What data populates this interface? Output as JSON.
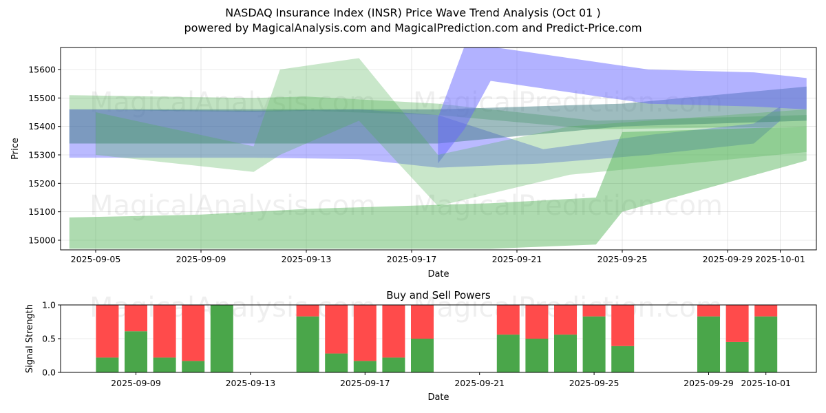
{
  "title": "NASDAQ Insurance Index (INSR) Price Wave Trend Analysis (Oct 01 )",
  "subtitle": "powered by MagicalAnalysis.com and MagicalPrediction.com and Predict-Price.com",
  "watermarks": [
    "MagicalAnalysis.com",
    "MagicalPrediction.com"
  ],
  "colors": {
    "buy": "#4aa64a",
    "sell": "#ff4b4b",
    "wave_blue": "#6666ff",
    "wave_green": "#4caf50"
  },
  "chart_data": [
    {
      "type": "area",
      "title": "",
      "xlabel": "Date",
      "ylabel": "Price",
      "ylim": [
        14970,
        15680
      ],
      "xlim": [
        "2025-09-04",
        "2025-10-02"
      ],
      "grid": true,
      "yticks": [
        15000,
        15100,
        15200,
        15300,
        15400,
        15500,
        15600
      ],
      "xticks": [
        "2025-09-05",
        "2025-09-09",
        "2025-09-13",
        "2025-09-17",
        "2025-09-21",
        "2025-09-25",
        "2025-09-29",
        "2025-10-01"
      ],
      "bands": [
        {
          "name": "green-high",
          "color": "green",
          "opacity": 0.35,
          "x": [
            "2025-09-04",
            "2025-09-11",
            "2025-09-13",
            "2025-09-18",
            "2025-09-24",
            "2025-10-02"
          ],
          "lower": [
            15460,
            15450,
            15455,
            15440,
            15390,
            15400
          ],
          "upper": [
            15510,
            15500,
            15505,
            15480,
            15420,
            15440
          ]
        },
        {
          "name": "blue-main",
          "color": "blue",
          "opacity": 0.45,
          "x": [
            "2025-09-04",
            "2025-09-11",
            "2025-09-15",
            "2025-09-18",
            "2025-09-22",
            "2025-09-26",
            "2025-09-30",
            "2025-10-01"
          ],
          "lower": [
            15290,
            15290,
            15285,
            15255,
            15270,
            15300,
            15340,
            15420
          ],
          "upper": [
            15460,
            15455,
            15460,
            15440,
            15320,
            15370,
            15410,
            15470
          ]
        },
        {
          "name": "blue-teal",
          "color": "teal",
          "opacity": 0.5,
          "x": [
            "2025-09-04",
            "2025-09-18",
            "2025-09-25",
            "2025-10-02"
          ],
          "lower": [
            15340,
            15340,
            15400,
            15420
          ],
          "upper": [
            15460,
            15460,
            15480,
            15540
          ]
        },
        {
          "name": "blue-upper",
          "color": "blue",
          "opacity": 0.5,
          "x": [
            "2025-09-18",
            "2025-09-19",
            "2025-09-20",
            "2025-09-26",
            "2025-09-30",
            "2025-10-02"
          ],
          "lower": [
            15270,
            15390,
            15560,
            15480,
            15470,
            15460
          ],
          "upper": [
            15430,
            15680,
            15680,
            15600,
            15590,
            15570
          ]
        },
        {
          "name": "green-low",
          "color": "green",
          "opacity": 0.45,
          "x": [
            "2025-09-04",
            "2025-09-09",
            "2025-09-13",
            "2025-09-20",
            "2025-09-24",
            "2025-09-25",
            "2025-10-02"
          ],
          "lower": [
            14970,
            14970,
            14970,
            14970,
            14985,
            15100,
            15280
          ],
          "upper": [
            15080,
            15090,
            15110,
            15130,
            15150,
            15380,
            15400
          ]
        },
        {
          "name": "green-mid",
          "color": "green",
          "opacity": 0.3,
          "x": [
            "2025-09-05",
            "2025-09-11",
            "2025-09-12",
            "2025-09-15",
            "2025-09-18",
            "2025-09-23",
            "2025-10-02"
          ],
          "lower": [
            15300,
            15240,
            15300,
            15420,
            15120,
            15230,
            15310
          ],
          "upper": [
            15450,
            15330,
            15600,
            15640,
            15300,
            15400,
            15460
          ]
        }
      ]
    },
    {
      "type": "bar",
      "title": "Buy and Sell Powers",
      "xlabel": "Date",
      "ylabel": "Signal Strength",
      "ylim": [
        0,
        1
      ],
      "yticks": [
        0.0,
        0.5,
        1.0
      ],
      "xticks": [
        "2025-09-09",
        "2025-09-13",
        "2025-09-17",
        "2025-09-21",
        "2025-09-25",
        "2025-09-29",
        "2025-10-01"
      ],
      "grid": true,
      "categories": [
        "2025-09-08",
        "2025-09-09",
        "2025-09-10",
        "2025-09-11",
        "2025-09-12",
        "2025-09-15",
        "2025-09-16",
        "2025-09-17",
        "2025-09-18",
        "2025-09-19",
        "2025-09-22",
        "2025-09-23",
        "2025-09-24",
        "2025-09-25",
        "2025-09-26",
        "2025-09-29",
        "2025-09-30",
        "2025-10-01"
      ],
      "series": [
        {
          "name": "Buy",
          "values": [
            0.22,
            0.61,
            0.22,
            0.17,
            1.0,
            0.83,
            0.28,
            0.17,
            0.22,
            0.5,
            0.56,
            0.5,
            0.56,
            0.83,
            0.39,
            0.83,
            0.45,
            0.83
          ]
        },
        {
          "name": "Sell",
          "values": [
            0.78,
            0.39,
            0.78,
            0.83,
            0.0,
            0.17,
            0.72,
            0.83,
            0.78,
            0.5,
            0.44,
            0.5,
            0.44,
            0.17,
            0.61,
            0.17,
            0.55,
            0.17
          ]
        }
      ]
    }
  ]
}
